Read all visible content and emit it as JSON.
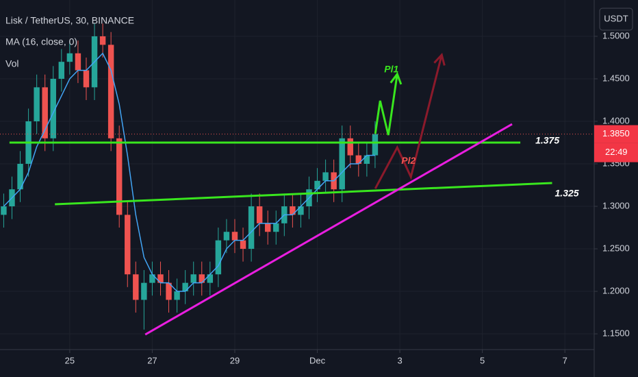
{
  "chart_data": {
    "type": "candlestick",
    "title": "Lisk / TetherUS, 30, BINANCE",
    "indicator_label": "MA (16, close, 0)",
    "volume_label": "Vol",
    "currency": "USDT",
    "x": [
      23.4,
      23.6,
      23.8,
      24.0,
      24.2,
      24.4,
      24.6,
      24.8,
      25.0,
      25.2,
      25.4,
      25.6,
      25.8,
      26.0,
      26.2,
      26.4,
      26.6,
      26.8,
      27.0,
      27.2,
      27.4,
      27.6,
      27.8,
      28.0,
      28.2,
      28.4,
      28.6,
      28.8,
      29.0,
      29.2,
      29.4,
      29.6,
      29.8,
      30.0,
      30.2,
      30.4,
      30.6,
      30.8,
      31.0,
      31.2,
      31.4,
      31.6,
      31.8,
      32.0,
      32.2,
      32.4
    ],
    "open": [
      1.29,
      1.3,
      1.32,
      1.35,
      1.4,
      1.44,
      1.38,
      1.45,
      1.47,
      1.48,
      1.46,
      1.44,
      1.5,
      1.49,
      1.38,
      1.29,
      1.22,
      1.19,
      1.21,
      1.22,
      1.21,
      1.19,
      1.2,
      1.21,
      1.22,
      1.21,
      1.22,
      1.26,
      1.27,
      1.26,
      1.25,
      1.3,
      1.28,
      1.27,
      1.28,
      1.3,
      1.29,
      1.3,
      1.32,
      1.33,
      1.34,
      1.32,
      1.38,
      1.36,
      1.35,
      1.36
    ],
    "high": [
      1.315,
      1.335,
      1.365,
      1.415,
      1.455,
      1.455,
      1.465,
      1.485,
      1.495,
      1.495,
      1.475,
      1.515,
      1.515,
      1.505,
      1.395,
      1.305,
      1.235,
      1.225,
      1.235,
      1.235,
      1.225,
      1.215,
      1.225,
      1.235,
      1.235,
      1.235,
      1.275,
      1.285,
      1.285,
      1.275,
      1.315,
      1.315,
      1.295,
      1.295,
      1.315,
      1.315,
      1.315,
      1.335,
      1.345,
      1.355,
      1.355,
      1.395,
      1.395,
      1.375,
      1.375,
      1.4
    ],
    "low": [
      1.275,
      1.285,
      1.305,
      1.335,
      1.385,
      1.365,
      1.365,
      1.435,
      1.455,
      1.445,
      1.425,
      1.425,
      1.475,
      1.365,
      1.275,
      1.205,
      1.175,
      1.155,
      1.195,
      1.195,
      1.175,
      1.175,
      1.185,
      1.195,
      1.195,
      1.195,
      1.205,
      1.245,
      1.245,
      1.235,
      1.235,
      1.265,
      1.255,
      1.255,
      1.265,
      1.275,
      1.275,
      1.285,
      1.305,
      1.315,
      1.305,
      1.305,
      1.345,
      1.335,
      1.335,
      1.345
    ],
    "close": [
      1.3,
      1.32,
      1.35,
      1.4,
      1.44,
      1.38,
      1.45,
      1.47,
      1.48,
      1.46,
      1.44,
      1.5,
      1.49,
      1.38,
      1.29,
      1.22,
      1.19,
      1.21,
      1.22,
      1.21,
      1.19,
      1.2,
      1.21,
      1.22,
      1.21,
      1.22,
      1.26,
      1.27,
      1.26,
      1.25,
      1.3,
      1.28,
      1.27,
      1.28,
      1.3,
      1.29,
      1.3,
      1.32,
      1.33,
      1.34,
      1.32,
      1.38,
      1.36,
      1.35,
      1.36,
      1.385
    ],
    "ma": [
      1.3,
      1.31,
      1.32,
      1.34,
      1.37,
      1.39,
      1.41,
      1.43,
      1.45,
      1.46,
      1.46,
      1.47,
      1.48,
      1.46,
      1.42,
      1.36,
      1.29,
      1.24,
      1.22,
      1.21,
      1.21,
      1.2,
      1.2,
      1.21,
      1.21,
      1.22,
      1.23,
      1.25,
      1.26,
      1.26,
      1.27,
      1.28,
      1.28,
      1.28,
      1.29,
      1.29,
      1.3,
      1.31,
      1.32,
      1.33,
      1.33,
      1.34,
      1.35,
      1.35,
      1.36,
      1.36
    ],
    "up_color": "#26a69a",
    "down_color": "#ef5350",
    "ma_color": "#42a5f5",
    "xlim": [
      23.31,
      37.71
    ],
    "xticks": [
      25,
      27,
      29,
      {
        "value": 31,
        "label": "Dec"
      },
      {
        "value": 33,
        "label": "3"
      },
      {
        "value": 35,
        "label": "5"
      },
      {
        "value": 37,
        "label": "7"
      }
    ],
    "ylim": [
      1.1315,
      1.5427
    ],
    "yticks": [
      {
        "value": 1.15,
        "label": "1.1500"
      },
      {
        "value": 1.2,
        "label": "1.2000"
      },
      {
        "value": 1.25,
        "label": "1.2500"
      },
      {
        "value": 1.3,
        "label": "1.3000"
      },
      {
        "value": 1.35,
        "label": "1.3500"
      },
      {
        "value": 1.4,
        "label": "1.4000"
      },
      {
        "value": 1.45,
        "label": "1.4500"
      },
      {
        "value": 1.5,
        "label": "1.5000"
      }
    ],
    "last_price": {
      "value": 1.385,
      "label": "1.3850"
    },
    "countdown": "22:49",
    "drawings": [
      {
        "label": "1.375",
        "color": "#39e61e",
        "points": [
          [
            23.54,
            1.375
          ],
          [
            35.92,
            1.375
          ]
        ]
      },
      {
        "label": "1.325",
        "color": "#39e61e",
        "points": [
          [
            24.64,
            1.3024
          ],
          [
            36.69,
            1.3274
          ]
        ]
      },
      {
        "color": "#e91ee0",
        "points": [
          [
            26.83,
            1.1492
          ],
          [
            35.72,
            1.3967
          ]
        ]
      },
      {
        "label": "Pl1",
        "color": "#39e61e",
        "arrow": true,
        "points": [
          [
            32.405,
            1.3854
          ],
          [
            32.522,
            1.4242
          ],
          [
            32.721,
            1.3838
          ],
          [
            32.937,
            1.4556
          ]
        ]
      },
      {
        "label": "Pl2",
        "color": "#8b1a2b",
        "label_color": "#ef5350",
        "arrow": true,
        "points": [
          [
            32.405,
            1.3209
          ],
          [
            32.937,
            1.3693
          ],
          [
            33.268,
            1.3346
          ],
          [
            34.015,
            1.4782
          ]
        ]
      }
    ]
  }
}
